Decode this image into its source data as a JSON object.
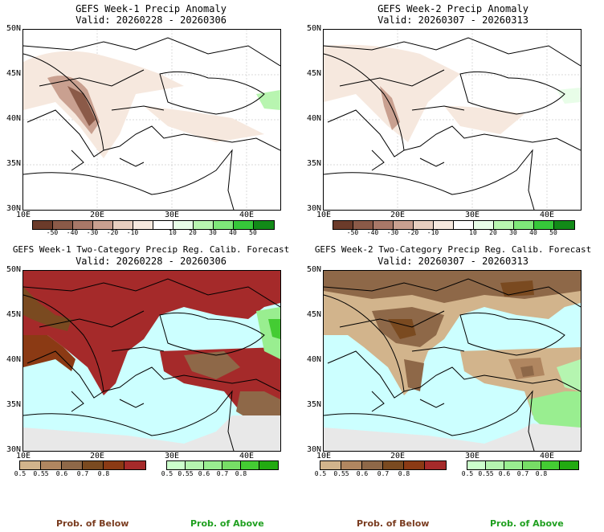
{
  "panels": [
    {
      "title": "GEFS Week-1 Precip Anomaly",
      "valid": "Valid: 20260228 - 20260306"
    },
    {
      "title": "GEFS Week-2 Precip Anomaly",
      "valid": "Valid: 20260307 - 20260313"
    },
    {
      "title": "GEFS Week-1 Two-Category Precip Reg. Calib. Forecast",
      "valid": "Valid: 20260228 - 20260306"
    },
    {
      "title": "GEFS Week-2 Two-Category Precip Reg. Calib. Forecast",
      "valid": "Valid: 20260307 - 20260313"
    }
  ],
  "lat_labels": [
    "50N",
    "45N",
    "40N",
    "35N",
    "30N"
  ],
  "lon_labels": [
    "10E",
    "20E",
    "30E",
    "40E"
  ],
  "anomaly_scale": {
    "labels": [
      "-50",
      "-40",
      "-30",
      "-20",
      "-10",
      "10",
      "20",
      "30",
      "40",
      "50"
    ],
    "colors": [
      "#6b3b2a",
      "#8b5a48",
      "#a87868",
      "#c9a090",
      "#e8cfc0",
      "#f6e8de",
      "#ffffff",
      "#e8fde8",
      "#b8f5b0",
      "#7fe87a",
      "#36c83a",
      "#128a18"
    ]
  },
  "below_scale": {
    "labels": [
      "0.5",
      "0.55",
      "0.6",
      "0.7",
      "0.8"
    ],
    "colors": [
      "#d2b48c",
      "#b08660",
      "#8e6848",
      "#7a4a20",
      "#8b3a14",
      "#a52a2a"
    ]
  },
  "above_scale": {
    "labels": [
      "0.5",
      "0.55",
      "0.6",
      "0.7",
      "0.8"
    ],
    "colors": [
      "#ccffcc",
      "#b5f5b0",
      "#99ee90",
      "#77dd66",
      "#44cc33",
      "#22aa11"
    ]
  },
  "footer": {
    "below": "Prob. of Below",
    "above": "Prob. of Above"
  }
}
